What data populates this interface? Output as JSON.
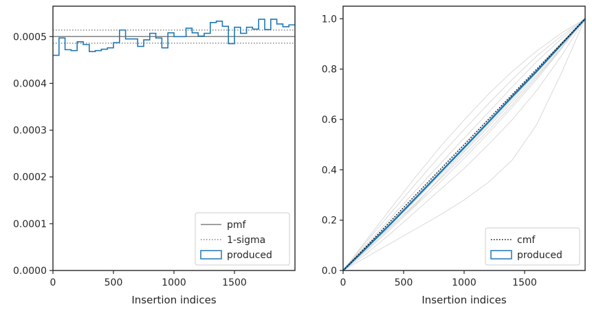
{
  "chart_data": [
    {
      "type": "step",
      "xlabel": "Insertion indices",
      "ylabel": "",
      "xlim": [
        0,
        2000
      ],
      "ylim": [
        0,
        0.000565
      ],
      "xticks": [
        0,
        500,
        1000,
        1500
      ],
      "xtick_labels": [
        "0",
        "500",
        "1000",
        "1500"
      ],
      "yticks": [
        0,
        0.0001,
        0.0002,
        0.0003,
        0.0004,
        0.0005
      ],
      "ytick_labels": [
        "0.0000",
        "0.0001",
        "0.0002",
        "0.0003",
        "0.0004",
        "0.0005"
      ],
      "pmf": 0.0005,
      "sigma_band": [
        0.000486,
        0.000514
      ],
      "produced": {
        "bin_edges": [
          0,
          50,
          100,
          150,
          200,
          250,
          300,
          350,
          400,
          450,
          500,
          550,
          600,
          650,
          700,
          750,
          800,
          850,
          900,
          950,
          1000,
          1050,
          1100,
          1150,
          1200,
          1250,
          1300,
          1350,
          1400,
          1450,
          1500,
          1550,
          1600,
          1650,
          1700,
          1750,
          1800,
          1850,
          1900,
          1950,
          2000
        ],
        "values": [
          0.00046,
          0.000497,
          0.000472,
          0.00047,
          0.000489,
          0.000483,
          0.000468,
          0.00047,
          0.000473,
          0.000476,
          0.000487,
          0.000514,
          0.000495,
          0.000495,
          0.000479,
          0.000493,
          0.000507,
          0.000497,
          0.000476,
          0.000508,
          0.0005,
          0.0005,
          0.000518,
          0.000508,
          0.000501,
          0.000507,
          0.00053,
          0.000533,
          0.000522,
          0.000485,
          0.00052,
          0.000507,
          0.00052,
          0.000516,
          0.000537,
          0.000515,
          0.000537,
          0.000527,
          0.000521,
          0.000525
        ]
      },
      "legend": {
        "position": "lower right",
        "entries": [
          {
            "label": "pmf",
            "style": "solid",
            "color": "#808080"
          },
          {
            "label": "1-sigma",
            "style": "dotted",
            "color": "#808080"
          },
          {
            "label": "produced",
            "style": "box",
            "color": "#1f77b4"
          }
        ]
      },
      "grid": false
    },
    {
      "type": "line",
      "xlabel": "Insertion indices",
      "ylabel": "",
      "xlim": [
        0,
        2000
      ],
      "ylim": [
        0,
        1.05
      ],
      "xticks": [
        0,
        500,
        1000,
        1500
      ],
      "xtick_labels": [
        "0",
        "500",
        "1000",
        "1500"
      ],
      "yticks": [
        0,
        0.2,
        0.4,
        0.6,
        0.8,
        1.0
      ],
      "ytick_labels": [
        "0.0",
        "0.2",
        "0.4",
        "0.6",
        "0.8",
        "1.0"
      ],
      "cmf": {
        "x": [
          0,
          2000
        ],
        "y": [
          0,
          1.0
        ],
        "style": "dotted",
        "color": "#000000"
      },
      "produced": {
        "x": [
          0,
          200,
          400,
          600,
          800,
          1000,
          1200,
          1400,
          1600,
          1800,
          2000
        ],
        "y": [
          0,
          0.094,
          0.189,
          0.288,
          0.388,
          0.488,
          0.589,
          0.692,
          0.792,
          0.896,
          1.0
        ],
        "color": "#1f77b4"
      },
      "samples": {
        "color": "#d9d9d9",
        "x": [
          0,
          200,
          400,
          600,
          800,
          1000,
          1200,
          1400,
          1600,
          1800,
          2000
        ],
        "curves": [
          [
            0,
            0.055,
            0.11,
            0.165,
            0.22,
            0.28,
            0.35,
            0.44,
            0.58,
            0.78,
            1.0
          ],
          [
            0,
            0.07,
            0.15,
            0.235,
            0.32,
            0.405,
            0.5,
            0.6,
            0.715,
            0.85,
            1.0
          ],
          [
            0,
            0.085,
            0.175,
            0.268,
            0.362,
            0.458,
            0.556,
            0.66,
            0.768,
            0.88,
            1.0
          ],
          [
            0,
            0.09,
            0.185,
            0.28,
            0.378,
            0.476,
            0.578,
            0.682,
            0.785,
            0.892,
            1.0
          ],
          [
            0,
            0.1,
            0.2,
            0.3,
            0.4,
            0.5,
            0.6,
            0.7,
            0.8,
            0.9,
            1.0
          ],
          [
            0,
            0.108,
            0.212,
            0.318,
            0.422,
            0.525,
            0.628,
            0.73,
            0.83,
            0.918,
            1.0
          ],
          [
            0,
            0.118,
            0.232,
            0.345,
            0.455,
            0.56,
            0.662,
            0.76,
            0.852,
            0.93,
            1.0
          ],
          [
            0,
            0.125,
            0.25,
            0.372,
            0.49,
            0.598,
            0.7,
            0.792,
            0.872,
            0.942,
            1.0
          ],
          [
            0,
            0.095,
            0.178,
            0.262,
            0.368,
            0.47,
            0.57,
            0.672,
            0.775,
            0.884,
            1.0
          ],
          [
            0,
            0.08,
            0.168,
            0.258,
            0.35,
            0.445,
            0.545,
            0.65,
            0.76,
            0.878,
            1.0
          ]
        ]
      },
      "legend": {
        "position": "lower right",
        "entries": [
          {
            "label": "cmf",
            "style": "dotted",
            "color": "#000000"
          },
          {
            "label": "produced",
            "style": "box",
            "color": "#1f77b4"
          }
        ]
      },
      "grid": false
    }
  ]
}
